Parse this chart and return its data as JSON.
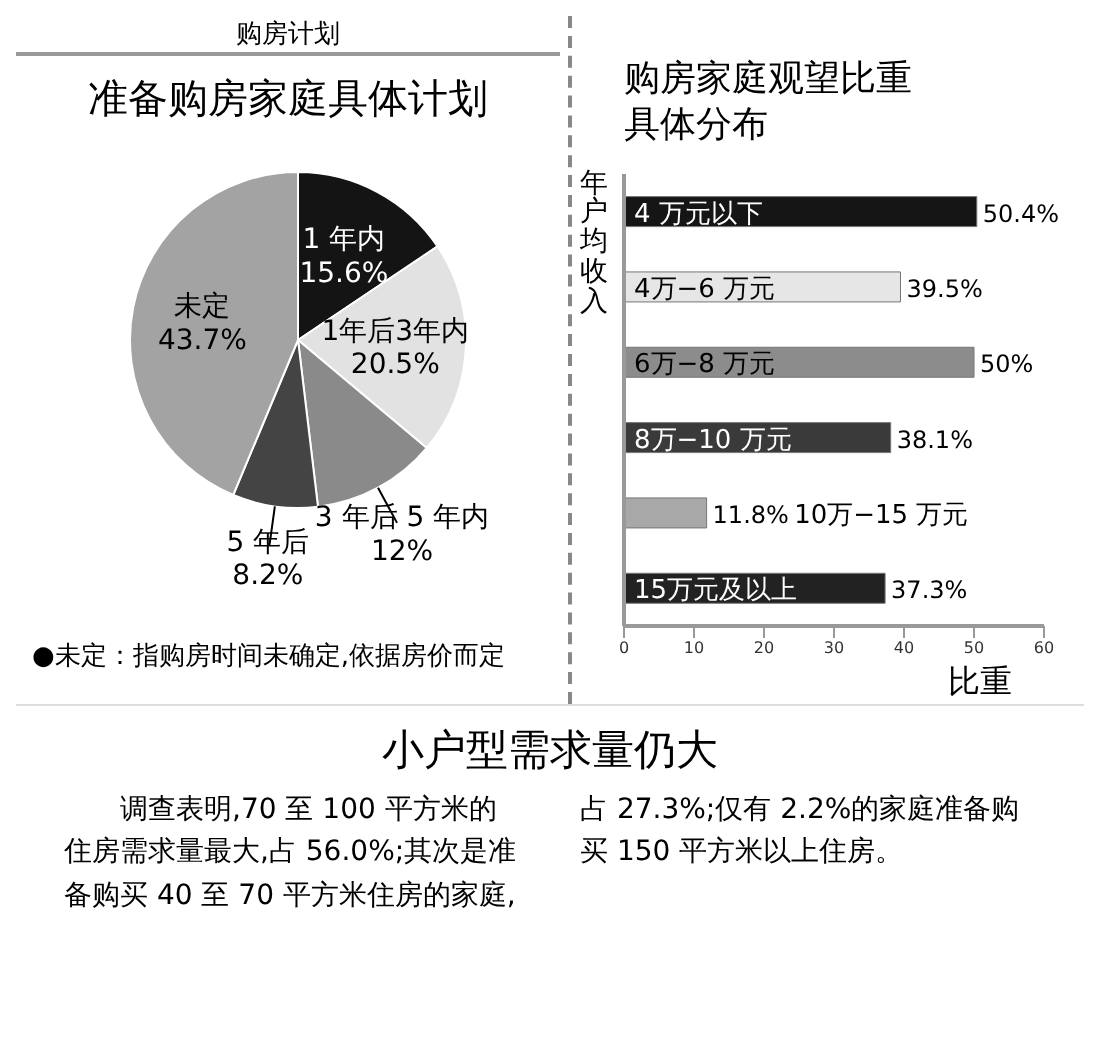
{
  "chart_data": [
    {
      "type": "pie",
      "title": "准备购房家庭具体计划",
      "annotations": [
        "购房计划",
        "●未定：指购房时间未确定,依据房价而定"
      ],
      "categories": [
        "1 年内",
        "1年后3年内",
        "3 年后 5 年内",
        "5 年后",
        "未定"
      ],
      "values": [
        15.6,
        20.5,
        12,
        8.2,
        43.7
      ],
      "value_labels": [
        "15.6%",
        "20.5%",
        "12%",
        "8.2%",
        "43.7%"
      ],
      "colors": [
        "#141414",
        "#e2e2e2",
        "#8a8a8a",
        "#444444",
        "#a3a3a3"
      ]
    },
    {
      "type": "bar",
      "orientation": "horizontal",
      "title": "购房家庭观望比重具体分布",
      "ylabel": "年户均收入",
      "xlabel": "比重",
      "categories": [
        "4 万元以下",
        "4万−6 万元",
        "6万−8 万元",
        "8万−10 万元",
        "10万−15 万元",
        "15万元及以上"
      ],
      "values": [
        50.4,
        39.5,
        50,
        38.1,
        11.8,
        37.3
      ],
      "value_labels": [
        "50.4%",
        "39.5%",
        "50%",
        "38.1%",
        "11.8%",
        "37.3%"
      ],
      "colors": [
        "#151515",
        "#e6e6e6",
        "#8c8c8c",
        "#3a3a3a",
        "#a8a8a8",
        "#222222"
      ],
      "xlim": [
        0,
        60
      ],
      "xticks": [
        0,
        10,
        20,
        30,
        40,
        50,
        60
      ]
    },
    {
      "type": "other",
      "title": "小户型需求量仍大",
      "annotations": [
        "调查表明,70 至 100 平方米的住房需求量最大,占 56.0%;其次是准备购买 40 至 70 平方米住房的家庭,占 27.3%;仅有 2.2%的家庭准备购买 150 平方米以上住房。"
      ]
    }
  ]
}
